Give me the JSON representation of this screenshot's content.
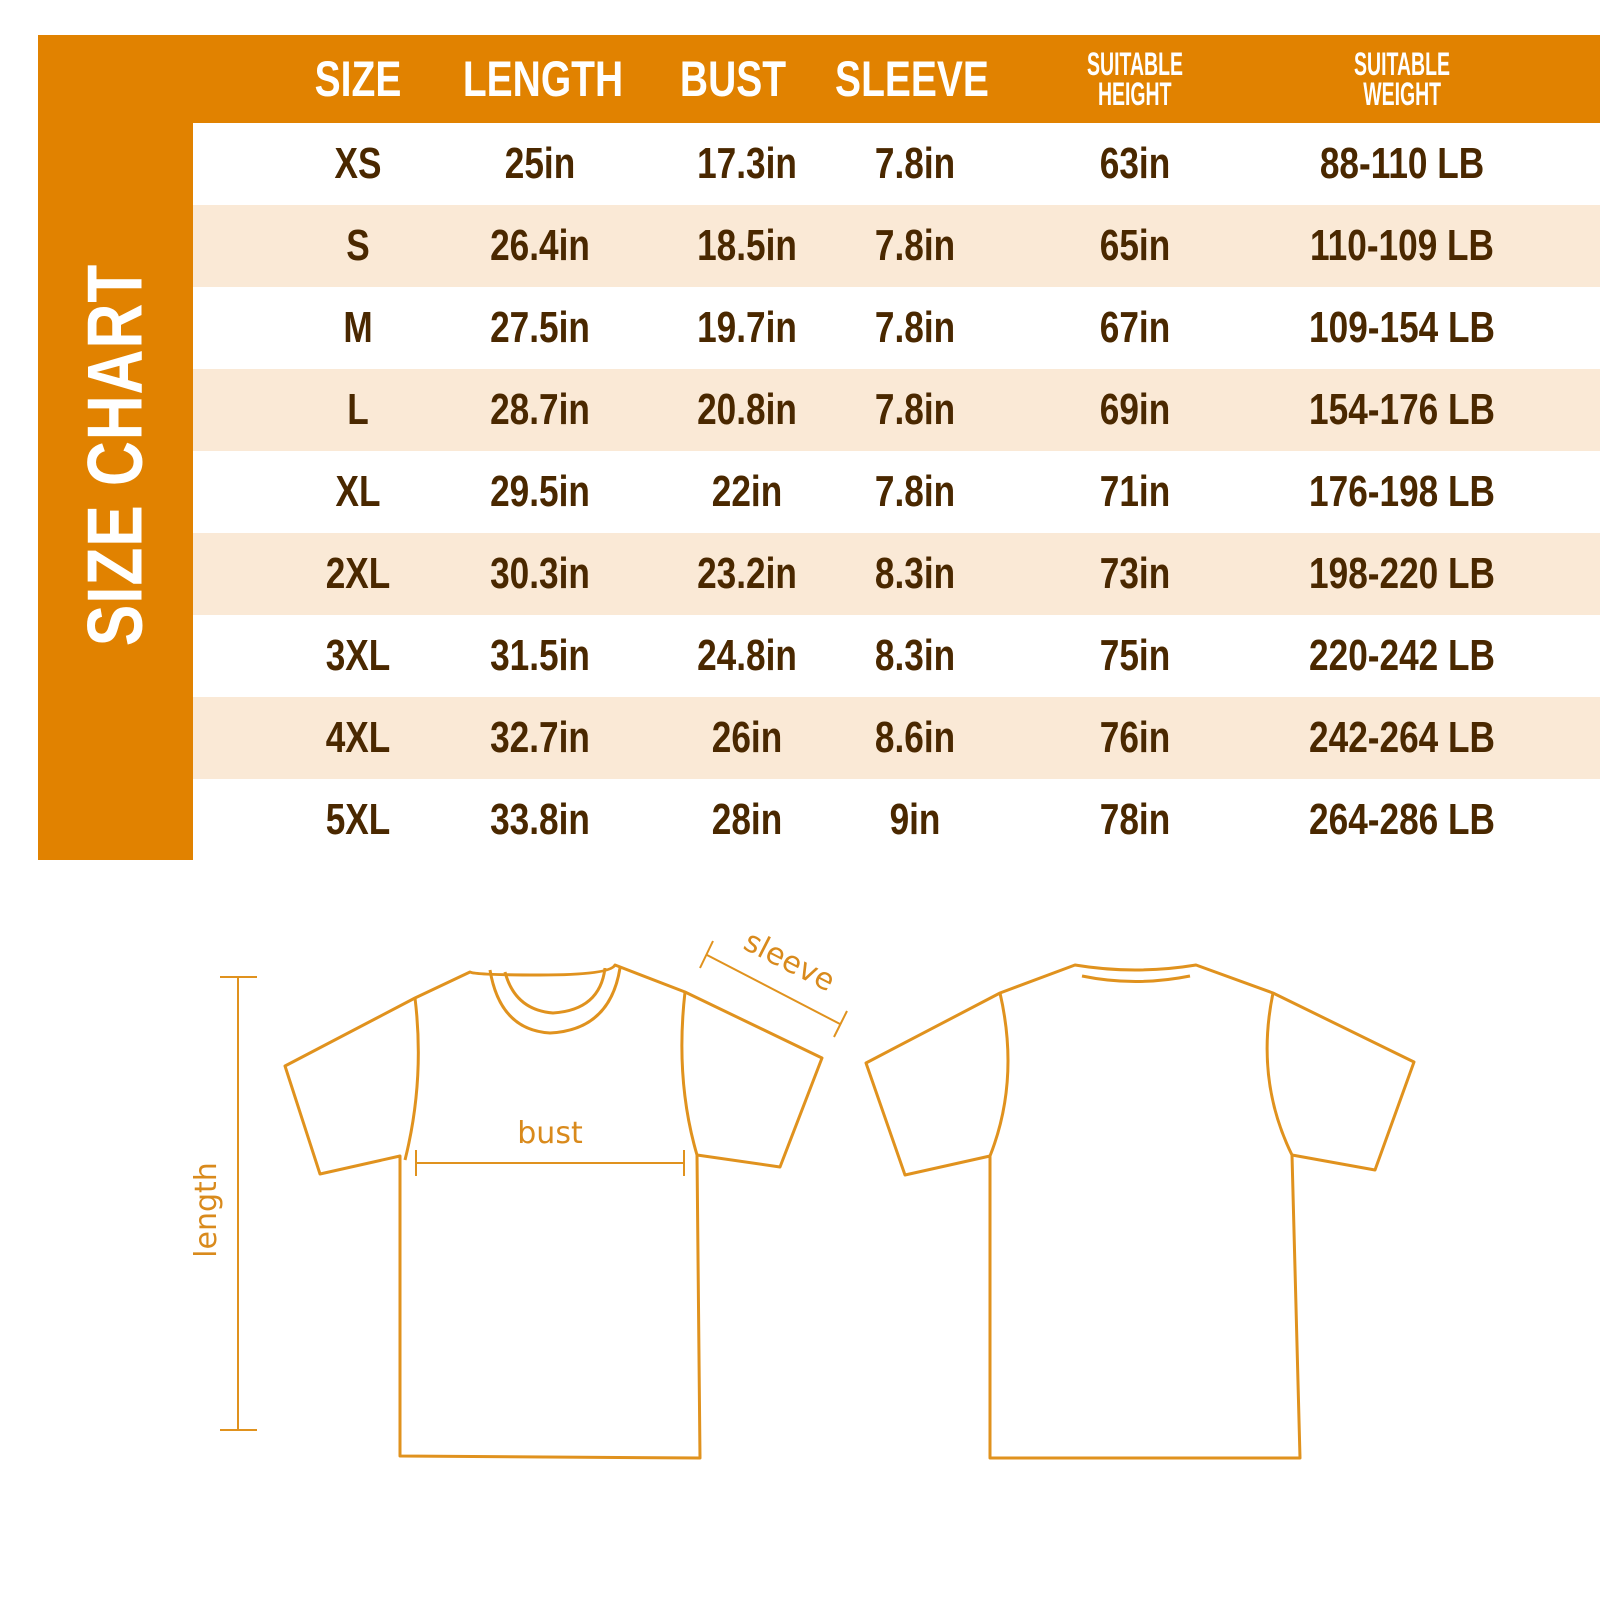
{
  "title": "SIZE CHART",
  "colors": {
    "accent": "#e18200",
    "row_alt": "#fae9d6",
    "text": "#4a2800",
    "diagram": "#e0921e"
  },
  "columns": [
    "SIZE",
    "LENGTH",
    "BUST",
    "SLEEVE",
    "SUITABLE HEIGHT",
    "SUITABLE WEIGHT"
  ],
  "header": {
    "size": "SIZE",
    "length": "LENGTH",
    "bust": "BUST",
    "sleeve": "SLEEVE",
    "height_1": "SUITABLE",
    "height_2": "HEIGHT",
    "weight_1": "SUITABLE",
    "weight_2": "WEIGHT"
  },
  "rows": [
    [
      "XS",
      "25in",
      "17.3in",
      "7.8in",
      "63in",
      "88-110 LB"
    ],
    [
      "S",
      "26.4in",
      "18.5in",
      "7.8in",
      "65in",
      "110-109 LB"
    ],
    [
      "M",
      "27.5in",
      "19.7in",
      "7.8in",
      "67in",
      "109-154 LB"
    ],
    [
      "L",
      "28.7in",
      "20.8in",
      "7.8in",
      "69in",
      "154-176 LB"
    ],
    [
      "XL",
      "29.5in",
      "22in",
      "7.8in",
      "71in",
      "176-198 LB"
    ],
    [
      "2XL",
      "30.3in",
      "23.2in",
      "8.3in",
      "73in",
      "198-220 LB"
    ],
    [
      "3XL",
      "31.5in",
      "24.8in",
      "8.3in",
      "75in",
      "220-242 LB"
    ],
    [
      "4XL",
      "32.7in",
      "26in",
      "8.6in",
      "76in",
      "242-264 LB"
    ],
    [
      "5XL",
      "33.8in",
      "28in",
      "9in",
      "78in",
      "264-286 LB"
    ]
  ],
  "diagram": {
    "sleeve": "sleeve",
    "bust": "bust",
    "length": "length"
  }
}
